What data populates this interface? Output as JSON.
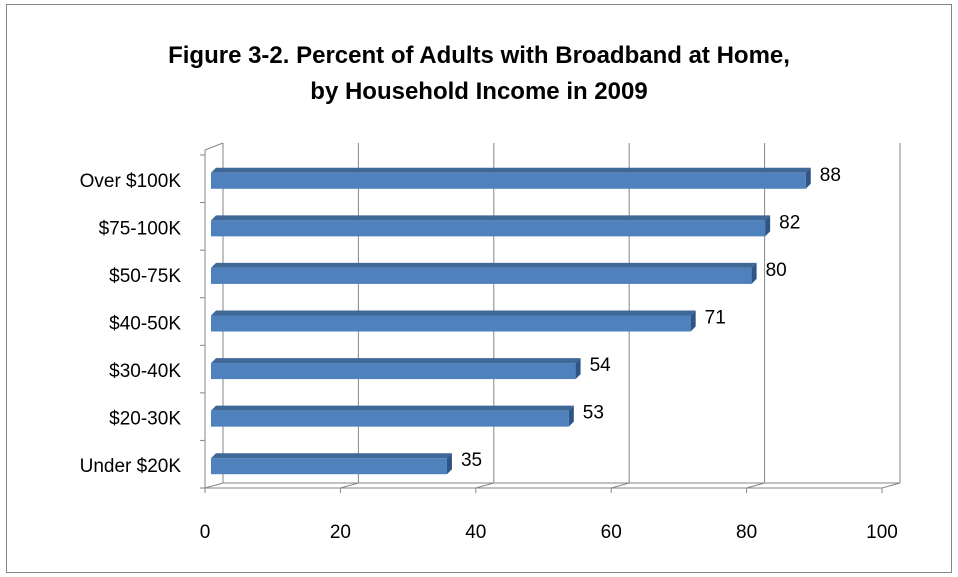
{
  "title_line1": "Figure 3-2. Percent of Adults with Broadband at Home,",
  "title_line2": "by Household Income in 2009",
  "chart_data": {
    "type": "bar",
    "orientation": "horizontal",
    "title": "Figure 3-2. Percent of Adults with Broadband at Home, by Household Income in 2009",
    "xlabel": "",
    "ylabel": "",
    "categories": [
      "Under $20K",
      "$20-30K",
      "$30-40K",
      "$40-50K",
      "$50-75K",
      "$75-100K",
      "Over $100K"
    ],
    "values": [
      35,
      53,
      54,
      71,
      80,
      82,
      88
    ],
    "xlim": [
      0,
      100
    ],
    "xticks": [
      0,
      20,
      40,
      60,
      80,
      100
    ],
    "grid": true,
    "legend": "none",
    "bar_color": "#4F81BD",
    "data_labels": true
  }
}
